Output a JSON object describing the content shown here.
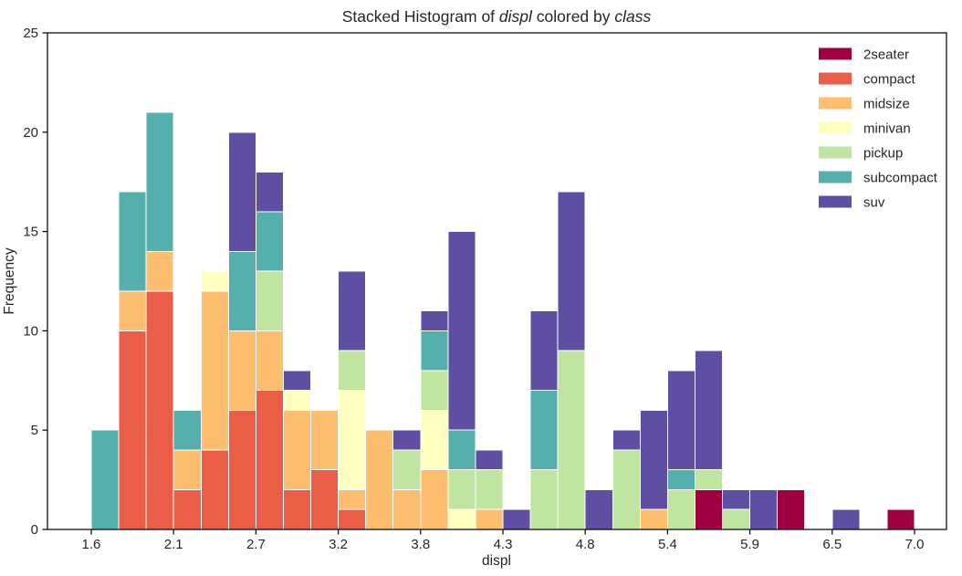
{
  "figure": {
    "background": "#ffffff",
    "text_color": "#262626",
    "spine_color": "#101010"
  },
  "chart_data": {
    "type": "bar",
    "subtype": "stacked-histogram",
    "title_segments": [
      {
        "text": "Stacked Histogram of ",
        "italic": false
      },
      {
        "text": "displ",
        "italic": true
      },
      {
        "text": " colored by ",
        "italic": false
      },
      {
        "text": "class",
        "italic": true
      }
    ],
    "title_plain": "Stacked Histogram of displ colored by class",
    "xlabel": "displ",
    "ylabel": "Frequency",
    "bin_start": 1.6,
    "bin_width": 0.18,
    "bin_count": 30,
    "xlim": [
      1.3127,
      7.2095
    ],
    "ylim": [
      0,
      25
    ],
    "grid": false,
    "legend_position": "upper right",
    "x_ticks": [
      {
        "value": 1.6,
        "label": "1.6"
      },
      {
        "value": 2.14,
        "label": "2.1"
      },
      {
        "value": 2.68,
        "label": "2.7"
      },
      {
        "value": 3.22,
        "label": "3.2"
      },
      {
        "value": 3.76,
        "label": "3.8"
      },
      {
        "value": 4.3,
        "label": "4.3"
      },
      {
        "value": 4.84,
        "label": "4.8"
      },
      {
        "value": 5.38,
        "label": "5.4"
      },
      {
        "value": 5.92,
        "label": "5.9"
      },
      {
        "value": 6.46,
        "label": "6.5"
      },
      {
        "value": 7.0,
        "label": "7.0"
      }
    ],
    "y_ticks": [
      0,
      5,
      10,
      15,
      20,
      25
    ],
    "series": [
      {
        "name": "2seater",
        "color": "#9e0142",
        "values": [
          0,
          0,
          0,
          0,
          0,
          0,
          0,
          0,
          0,
          0,
          0,
          0,
          0,
          0,
          0,
          0,
          0,
          0,
          0,
          0,
          0,
          0,
          2,
          0,
          0,
          2,
          0,
          0,
          0,
          1
        ]
      },
      {
        "name": "compact",
        "color": "#ea5d47",
        "values": [
          0,
          10,
          12,
          2,
          4,
          6,
          7,
          2,
          3,
          1,
          0,
          0,
          0,
          0,
          0,
          0,
          0,
          0,
          0,
          0,
          0,
          0,
          0,
          0,
          0,
          0,
          0,
          0,
          0,
          0
        ]
      },
      {
        "name": "midsize",
        "color": "#fdbf6f",
        "values": [
          0,
          2,
          2,
          2,
          8,
          4,
          3,
          4,
          3,
          1,
          5,
          2,
          3,
          0,
          1,
          0,
          0,
          0,
          0,
          0,
          1,
          0,
          0,
          0,
          0,
          0,
          0,
          0,
          0,
          0
        ]
      },
      {
        "name": "minivan",
        "color": "#ffffbf",
        "values": [
          0,
          0,
          0,
          0,
          1,
          0,
          0,
          1,
          0,
          5,
          0,
          0,
          3,
          1,
          0,
          0,
          0,
          0,
          0,
          0,
          0,
          0,
          0,
          0,
          0,
          0,
          0,
          0,
          0,
          0
        ]
      },
      {
        "name": "pickup",
        "color": "#bfe5a0",
        "values": [
          0,
          0,
          0,
          0,
          0,
          0,
          3,
          0,
          0,
          2,
          0,
          2,
          2,
          2,
          2,
          0,
          3,
          9,
          0,
          4,
          0,
          2,
          1,
          1,
          0,
          0,
          0,
          0,
          0,
          0
        ]
      },
      {
        "name": "subcompact",
        "color": "#55afad",
        "values": [
          5,
          5,
          7,
          2,
          0,
          4,
          3,
          0,
          0,
          0,
          0,
          0,
          2,
          2,
          0,
          0,
          4,
          0,
          0,
          0,
          0,
          1,
          0,
          0,
          0,
          0,
          0,
          0,
          0,
          0
        ]
      },
      {
        "name": "suv",
        "color": "#5e4fa2",
        "values": [
          0,
          0,
          0,
          0,
          0,
          6,
          2,
          1,
          0,
          4,
          0,
          1,
          1,
          10,
          1,
          1,
          4,
          8,
          2,
          1,
          5,
          5,
          6,
          1,
          2,
          0,
          0,
          1,
          0,
          0
        ]
      }
    ],
    "bin_totals": [
      5,
      17,
      21,
      6,
      13,
      20,
      18,
      8,
      6,
      13,
      5,
      5,
      11,
      15,
      4,
      1,
      11,
      17,
      2,
      5,
      6,
      8,
      9,
      2,
      2,
      2,
      0,
      1,
      0,
      1
    ],
    "total_observations": 234
  }
}
